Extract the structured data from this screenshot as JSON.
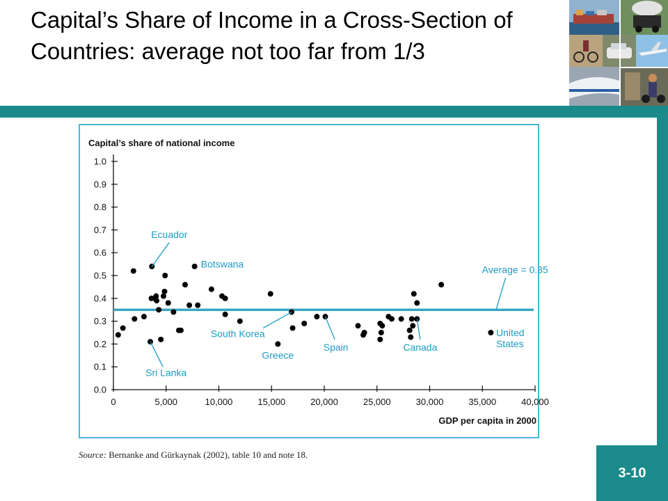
{
  "slide": {
    "title": "Capital’s Share of Income in a Cross-Section of Countries: average not too far from 1/3",
    "page_number": "3-10",
    "source_label": "Source:",
    "source_text": " Bernanke and Gürkaynak (2002), table 10 and note 18."
  },
  "colors": {
    "teal": "#1a8a8a",
    "chart_border": "#49b6d8",
    "average_line": "#3aa6c2",
    "annotation": "#1d9bc4",
    "points": "#000000"
  },
  "chart_data": {
    "type": "scatter",
    "ylabel": "Capital’s share of national income",
    "xlabel": "GDP per capita in 2000",
    "xlim": [
      0,
      40000
    ],
    "ylim": [
      0,
      1.0
    ],
    "x_ticks": [
      0,
      5000,
      10000,
      15000,
      20000,
      25000,
      30000,
      35000,
      40000
    ],
    "x_tick_labels": [
      "0",
      "5,000",
      "10,000",
      "15,000",
      "20,000",
      "25,000",
      "30,000",
      "35,000",
      "40,000"
    ],
    "y_ticks": [
      0,
      0.1,
      0.2,
      0.3,
      0.4,
      0.5,
      0.6,
      0.7,
      0.8,
      0.9,
      1.0
    ],
    "y_tick_labels": [
      "0.0",
      "0.1",
      "0.2",
      "0.3",
      "0.4",
      "0.5",
      "0.6",
      "0.7",
      "0.8",
      "0.9",
      "1.0"
    ],
    "average": 0.35,
    "average_label": "Average = 0.35",
    "points": [
      {
        "x": 450,
        "y": 0.24
      },
      {
        "x": 900,
        "y": 0.27
      },
      {
        "x": 1900,
        "y": 0.52
      },
      {
        "x": 2000,
        "y": 0.31
      },
      {
        "x": 2900,
        "y": 0.32
      },
      {
        "x": 3500,
        "y": 0.21
      },
      {
        "x": 3650,
        "y": 0.54
      },
      {
        "x": 3600,
        "y": 0.4
      },
      {
        "x": 3900,
        "y": 0.4
      },
      {
        "x": 4050,
        "y": 0.41
      },
      {
        "x": 4100,
        "y": 0.39
      },
      {
        "x": 4300,
        "y": 0.35
      },
      {
        "x": 4500,
        "y": 0.22
      },
      {
        "x": 4750,
        "y": 0.41
      },
      {
        "x": 4850,
        "y": 0.43
      },
      {
        "x": 4900,
        "y": 0.5
      },
      {
        "x": 5200,
        "y": 0.38
      },
      {
        "x": 5700,
        "y": 0.34
      },
      {
        "x": 6200,
        "y": 0.26
      },
      {
        "x": 6400,
        "y": 0.26
      },
      {
        "x": 6800,
        "y": 0.46
      },
      {
        "x": 7200,
        "y": 0.37
      },
      {
        "x": 7700,
        "y": 0.54
      },
      {
        "x": 8000,
        "y": 0.37
      },
      {
        "x": 9300,
        "y": 0.44
      },
      {
        "x": 10300,
        "y": 0.41
      },
      {
        "x": 10600,
        "y": 0.4
      },
      {
        "x": 10600,
        "y": 0.33
      },
      {
        "x": 12000,
        "y": 0.3
      },
      {
        "x": 14900,
        "y": 0.42
      },
      {
        "x": 15600,
        "y": 0.2
      },
      {
        "x": 16900,
        "y": 0.34
      },
      {
        "x": 17000,
        "y": 0.27
      },
      {
        "x": 18100,
        "y": 0.29
      },
      {
        "x": 19300,
        "y": 0.32
      },
      {
        "x": 20100,
        "y": 0.32
      },
      {
        "x": 23200,
        "y": 0.28
      },
      {
        "x": 23700,
        "y": 0.24
      },
      {
        "x": 23800,
        "y": 0.25
      },
      {
        "x": 25300,
        "y": 0.29
      },
      {
        "x": 25300,
        "y": 0.22
      },
      {
        "x": 25400,
        "y": 0.25
      },
      {
        "x": 25500,
        "y": 0.28
      },
      {
        "x": 26100,
        "y": 0.32
      },
      {
        "x": 26400,
        "y": 0.31
      },
      {
        "x": 27300,
        "y": 0.31
      },
      {
        "x": 28100,
        "y": 0.26
      },
      {
        "x": 28200,
        "y": 0.23
      },
      {
        "x": 28300,
        "y": 0.31
      },
      {
        "x": 28400,
        "y": 0.28
      },
      {
        "x": 28500,
        "y": 0.42
      },
      {
        "x": 28800,
        "y": 0.38
      },
      {
        "x": 28800,
        "y": 0.31
      },
      {
        "x": 31100,
        "y": 0.46
      },
      {
        "x": 35800,
        "y": 0.25
      }
    ],
    "annotations": [
      {
        "lines": [
          "Ecuador"
        ],
        "x": 3650,
        "y": 0.54,
        "anchor": "middle",
        "lx": 5300,
        "ly": 0.645,
        "tx": 5300,
        "ty": 0.665
      },
      {
        "lines": [
          "Botswana"
        ],
        "x": 7700,
        "y": 0.54,
        "anchor": "start",
        "tx": 8300,
        "ty": 0.535
      },
      {
        "lines": [
          "South Korea"
        ],
        "x": 16900,
        "y": 0.34,
        "anchor": "middle",
        "lx": 14200,
        "ly": 0.27,
        "tx": 11800,
        "ty": 0.23
      },
      {
        "lines": [
          "Greece"
        ],
        "x": 15600,
        "y": 0.2,
        "anchor": "middle",
        "tx": 15600,
        "ty": 0.135
      },
      {
        "lines": [
          "Sri Lanka"
        ],
        "x": 3500,
        "y": 0.21,
        "anchor": "middle",
        "lx": 4700,
        "ly": 0.1,
        "tx": 5000,
        "ty": 0.06
      },
      {
        "lines": [
          "Spain"
        ],
        "x": 20100,
        "y": 0.32,
        "anchor": "middle",
        "lx": 21000,
        "ly": 0.22,
        "tx": 21100,
        "ty": 0.17
      },
      {
        "lines": [
          "Canada"
        ],
        "x": 28800,
        "y": 0.31,
        "anchor": "middle",
        "lx": 29100,
        "ly": 0.22,
        "tx": 29100,
        "ty": 0.17
      },
      {
        "lines": [
          "United",
          "States"
        ],
        "x": 35800,
        "y": 0.25,
        "anchor": "start",
        "tx": 36300,
        "ty": 0.235
      },
      {
        "lines": [
          "Average = 0.35"
        ],
        "x": 36300,
        "y": 0.35,
        "anchor": "middle",
        "lx": 37200,
        "ly": 0.49,
        "tx": 38100,
        "ty": 0.51
      }
    ]
  }
}
